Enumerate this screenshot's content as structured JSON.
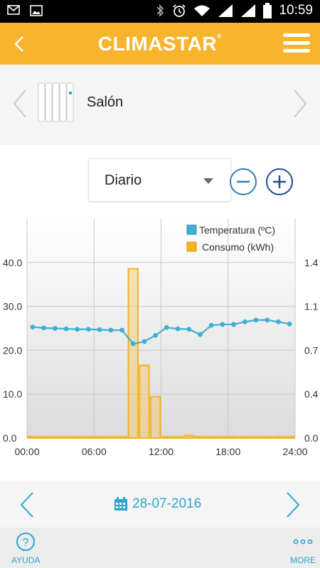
{
  "status_bar": {
    "time": "10:59"
  },
  "header": {
    "brand": "CLIMASTAR",
    "brand_mark": "®"
  },
  "device": {
    "name": "Salón"
  },
  "period": {
    "selected": "Diario"
  },
  "date_nav": {
    "date": "28-07-2016"
  },
  "bottom_bar": {
    "help_label": "AYUDA",
    "more_label": "MORE"
  },
  "colors": {
    "accent": "#F7B42C",
    "primary": "#2BA6CB",
    "temp_line": "#3FB0D3",
    "consumption_bar": "#F5B31E"
  },
  "chart_data": {
    "type": "bar",
    "x_ticks": [
      "00:00",
      "06:00",
      "12:00",
      "18:00",
      "24:00"
    ],
    "xlim": [
      0,
      24
    ],
    "legend": [
      "Temperatura (ºC)",
      "Consumo (kWh)"
    ],
    "legend_position": "top-right",
    "grid": true,
    "left_axis": {
      "ticks": [
        "0.0",
        "10.0",
        "20.0",
        "30.0",
        "40.0"
      ],
      "ylim": [
        0,
        50
      ]
    },
    "right_axis": {
      "ticks": [
        "0.0",
        "0.4",
        "0.7",
        "1.1",
        "1.4"
      ],
      "ylim": [
        0,
        1.75
      ]
    },
    "series": [
      {
        "name": "Temperatura (ºC)",
        "type": "line",
        "axis": "left",
        "x": [
          0,
          1,
          2,
          3,
          4,
          5,
          6,
          7,
          8,
          9,
          10,
          11,
          12,
          13,
          14,
          15,
          16,
          17,
          18,
          19,
          20,
          21,
          22,
          23
        ],
        "values": [
          25.3,
          25.1,
          25.0,
          24.9,
          24.8,
          24.8,
          24.7,
          24.6,
          24.6,
          21.5,
          22.0,
          23.4,
          25.2,
          24.9,
          24.8,
          23.6,
          25.7,
          25.9,
          25.9,
          26.5,
          26.9,
          26.9,
          26.5,
          26.0
        ]
      },
      {
        "name": "Consumo (kWh)",
        "type": "bar",
        "axis": "right",
        "x": [
          0,
          1,
          2,
          3,
          4,
          5,
          6,
          7,
          8,
          9,
          10,
          11,
          12,
          13,
          14,
          15,
          16,
          17,
          18,
          19,
          20,
          21,
          22,
          23
        ],
        "values": [
          0.01,
          0.01,
          0.01,
          0.01,
          0.01,
          0.01,
          0.01,
          0.01,
          0.01,
          1.35,
          0.58,
          0.33,
          0.01,
          0.01,
          0.02,
          0.01,
          0.01,
          0.01,
          0.01,
          0.01,
          0.01,
          0.01,
          0.01,
          0.01
        ]
      }
    ]
  }
}
